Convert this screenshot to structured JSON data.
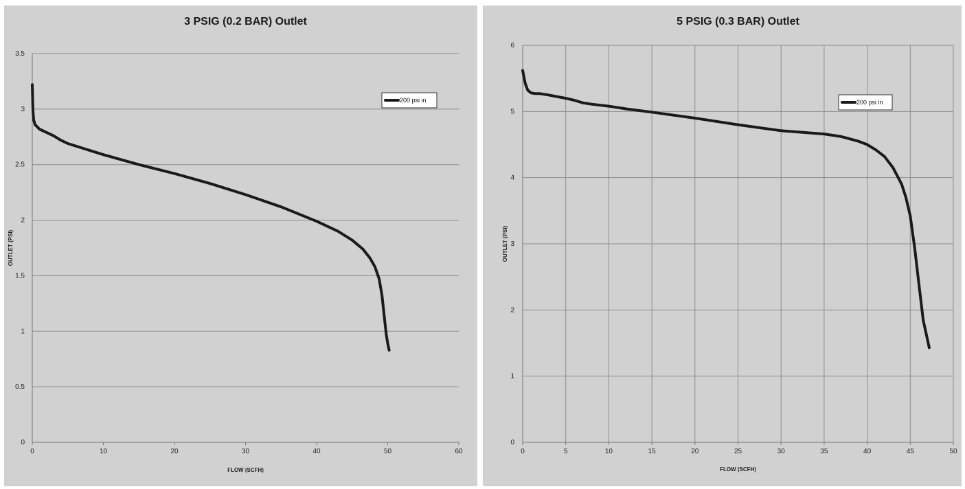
{
  "chart_data": [
    {
      "type": "line",
      "title": "3 PSIG (0.2 BAR) Outlet",
      "xlabel": "FLOW (SCFH)",
      "ylabel": "OUTLET (PSI)",
      "xlim": [
        0,
        60
      ],
      "ylim": [
        0,
        3.5
      ],
      "xticks": [
        0,
        10,
        20,
        30,
        40,
        50,
        60
      ],
      "yticks": [
        0,
        0.5,
        1,
        1.5,
        2,
        2.5,
        3,
        3.5
      ],
      "grid": "horizontal",
      "legend_position": "top-right",
      "line_color": "#1a1a1a",
      "series": [
        {
          "name": "200 psi in",
          "x": [
            0,
            0.05,
            0.1,
            0.2,
            0.4,
            0.7,
            1,
            2,
            3,
            4,
            5,
            7,
            10,
            15,
            20,
            25,
            30,
            35,
            40,
            43,
            45,
            46.5,
            47.5,
            48.2,
            48.8,
            49.2,
            49.4,
            49.6,
            49.8,
            50,
            50.2
          ],
          "y": [
            3.22,
            3.1,
            2.98,
            2.9,
            2.86,
            2.84,
            2.82,
            2.79,
            2.76,
            2.72,
            2.69,
            2.65,
            2.59,
            2.5,
            2.42,
            2.33,
            2.23,
            2.12,
            1.99,
            1.9,
            1.82,
            1.74,
            1.66,
            1.58,
            1.47,
            1.32,
            1.2,
            1.08,
            0.97,
            0.89,
            0.83
          ]
        }
      ]
    },
    {
      "type": "line",
      "title": "5 PSIG (0.3 BAR) Outlet",
      "xlabel": "FLOW (SCFH)",
      "ylabel": "OUTLET (PSI)",
      "xlim": [
        0,
        50
      ],
      "ylim": [
        0,
        6
      ],
      "xticks": [
        0,
        5,
        10,
        15,
        20,
        25,
        30,
        35,
        40,
        45,
        50
      ],
      "yticks": [
        0,
        1,
        2,
        3,
        4,
        5,
        6
      ],
      "grid": "both",
      "legend_position": "top-right",
      "line_color": "#1a1a1a",
      "series": [
        {
          "name": "200 psi in",
          "x": [
            0,
            0.1,
            0.3,
            0.6,
            1,
            1.5,
            2,
            3,
            5,
            6,
            7,
            8,
            10,
            12,
            15,
            20,
            25,
            30,
            35,
            37,
            39,
            40,
            41,
            42,
            43,
            44,
            44.5,
            45,
            45.5,
            46,
            46.5,
            47,
            47.2
          ],
          "y": [
            5.62,
            5.55,
            5.42,
            5.32,
            5.28,
            5.27,
            5.27,
            5.25,
            5.2,
            5.17,
            5.13,
            5.11,
            5.08,
            5.04,
            4.99,
            4.9,
            4.8,
            4.71,
            4.66,
            4.62,
            4.55,
            4.5,
            4.42,
            4.32,
            4.15,
            3.9,
            3.7,
            3.42,
            2.95,
            2.4,
            1.85,
            1.55,
            1.43
          ]
        }
      ]
    }
  ]
}
